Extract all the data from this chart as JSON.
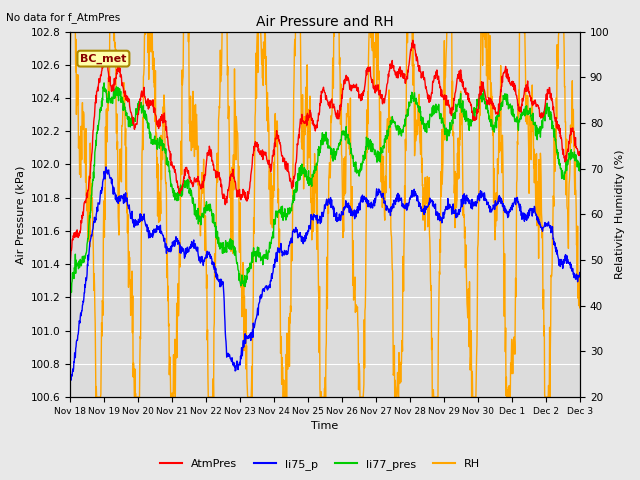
{
  "title": "Air Pressure and RH",
  "subtitle": "No data for f_AtmPres",
  "xlabel": "Time",
  "ylabel_left": "Air Pressure (kPa)",
  "ylabel_right": "Relativity Humidity (%)",
  "legend_label": "BC_met",
  "x_tick_labels": [
    "Nov 18",
    "Nov 19",
    "Nov 20",
    "Nov 21",
    "Nov 22",
    "Nov 23",
    "Nov 24",
    "Nov 25",
    "Nov 26",
    "Nov 27",
    "Nov 28",
    "Nov 29",
    "Nov 30",
    "Dec 1",
    "Dec 2",
    "Dec 3"
  ],
  "ylim_left": [
    100.6,
    102.8
  ],
  "ylim_right": [
    20,
    100
  ],
  "line_colors": {
    "AtmPres": "#FF0000",
    "li75_p": "#0000FF",
    "li77_pres": "#00CC00",
    "RH": "#FFA500"
  },
  "bg_color": "#E8E8E8",
  "plot_bg_color": "#DCDCDC",
  "grid_color": "#FFFFFF"
}
